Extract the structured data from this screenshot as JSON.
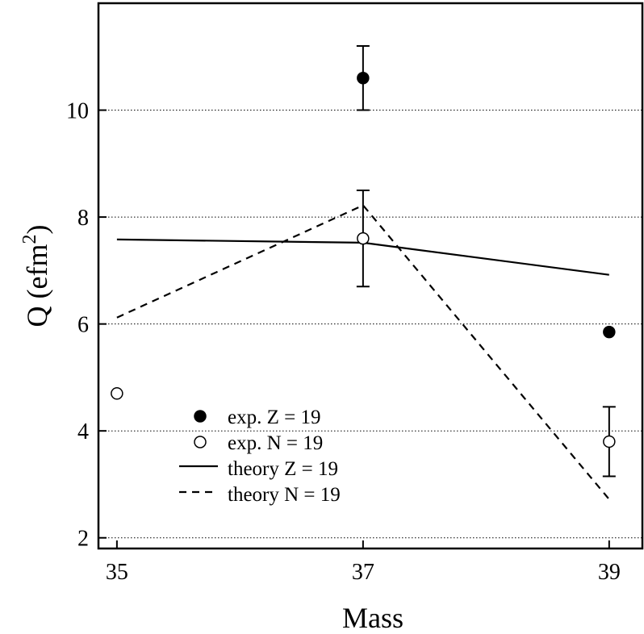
{
  "chart_data": {
    "type": "scatter",
    "xlabel": "Mass",
    "ylabel_base": "Q (efm",
    "ylabel_sup": "2",
    "ylabel_close": ")",
    "xlim": [
      34.85,
      39.27
    ],
    "ylim": [
      1.8,
      12.0
    ],
    "xticks": [
      35,
      37,
      39
    ],
    "xtick_labels": [
      "35",
      "37",
      "39"
    ],
    "yticks": [
      2,
      4,
      6,
      8,
      10
    ],
    "ytick_labels": [
      "2",
      "4",
      "6",
      "8",
      "10"
    ],
    "grid": "horizontal dotted lines at y ticks",
    "legend_position": "bottom-left",
    "series": [
      {
        "name": "exp. Z = 19",
        "kind": "points",
        "marker": "filled-circle",
        "color": "#000000",
        "points": [
          {
            "x": 37,
            "y": 10.6,
            "err": 0.6
          },
          {
            "x": 39,
            "y": 5.85,
            "err": 0.05
          }
        ]
      },
      {
        "name": "exp. N = 19",
        "kind": "points",
        "marker": "open-circle",
        "color": "#000000",
        "points": [
          {
            "x": 35,
            "y": 4.7,
            "err": 0.05
          },
          {
            "x": 37,
            "y": 7.6,
            "err": 0.9
          },
          {
            "x": 39,
            "y": 3.8,
            "err": 0.65
          }
        ]
      },
      {
        "name": "theory Z = 19",
        "kind": "line",
        "dash": "solid",
        "color": "#000000",
        "points": [
          {
            "x": 35,
            "y": 7.58
          },
          {
            "x": 37,
            "y": 7.52
          },
          {
            "x": 39,
            "y": 6.92
          }
        ]
      },
      {
        "name": "theory N = 19",
        "kind": "line",
        "dash": "dashed",
        "color": "#000000",
        "points": [
          {
            "x": 35,
            "y": 6.12
          },
          {
            "x": 37,
            "y": 8.22
          },
          {
            "x": 39,
            "y": 2.72
          }
        ]
      }
    ]
  }
}
